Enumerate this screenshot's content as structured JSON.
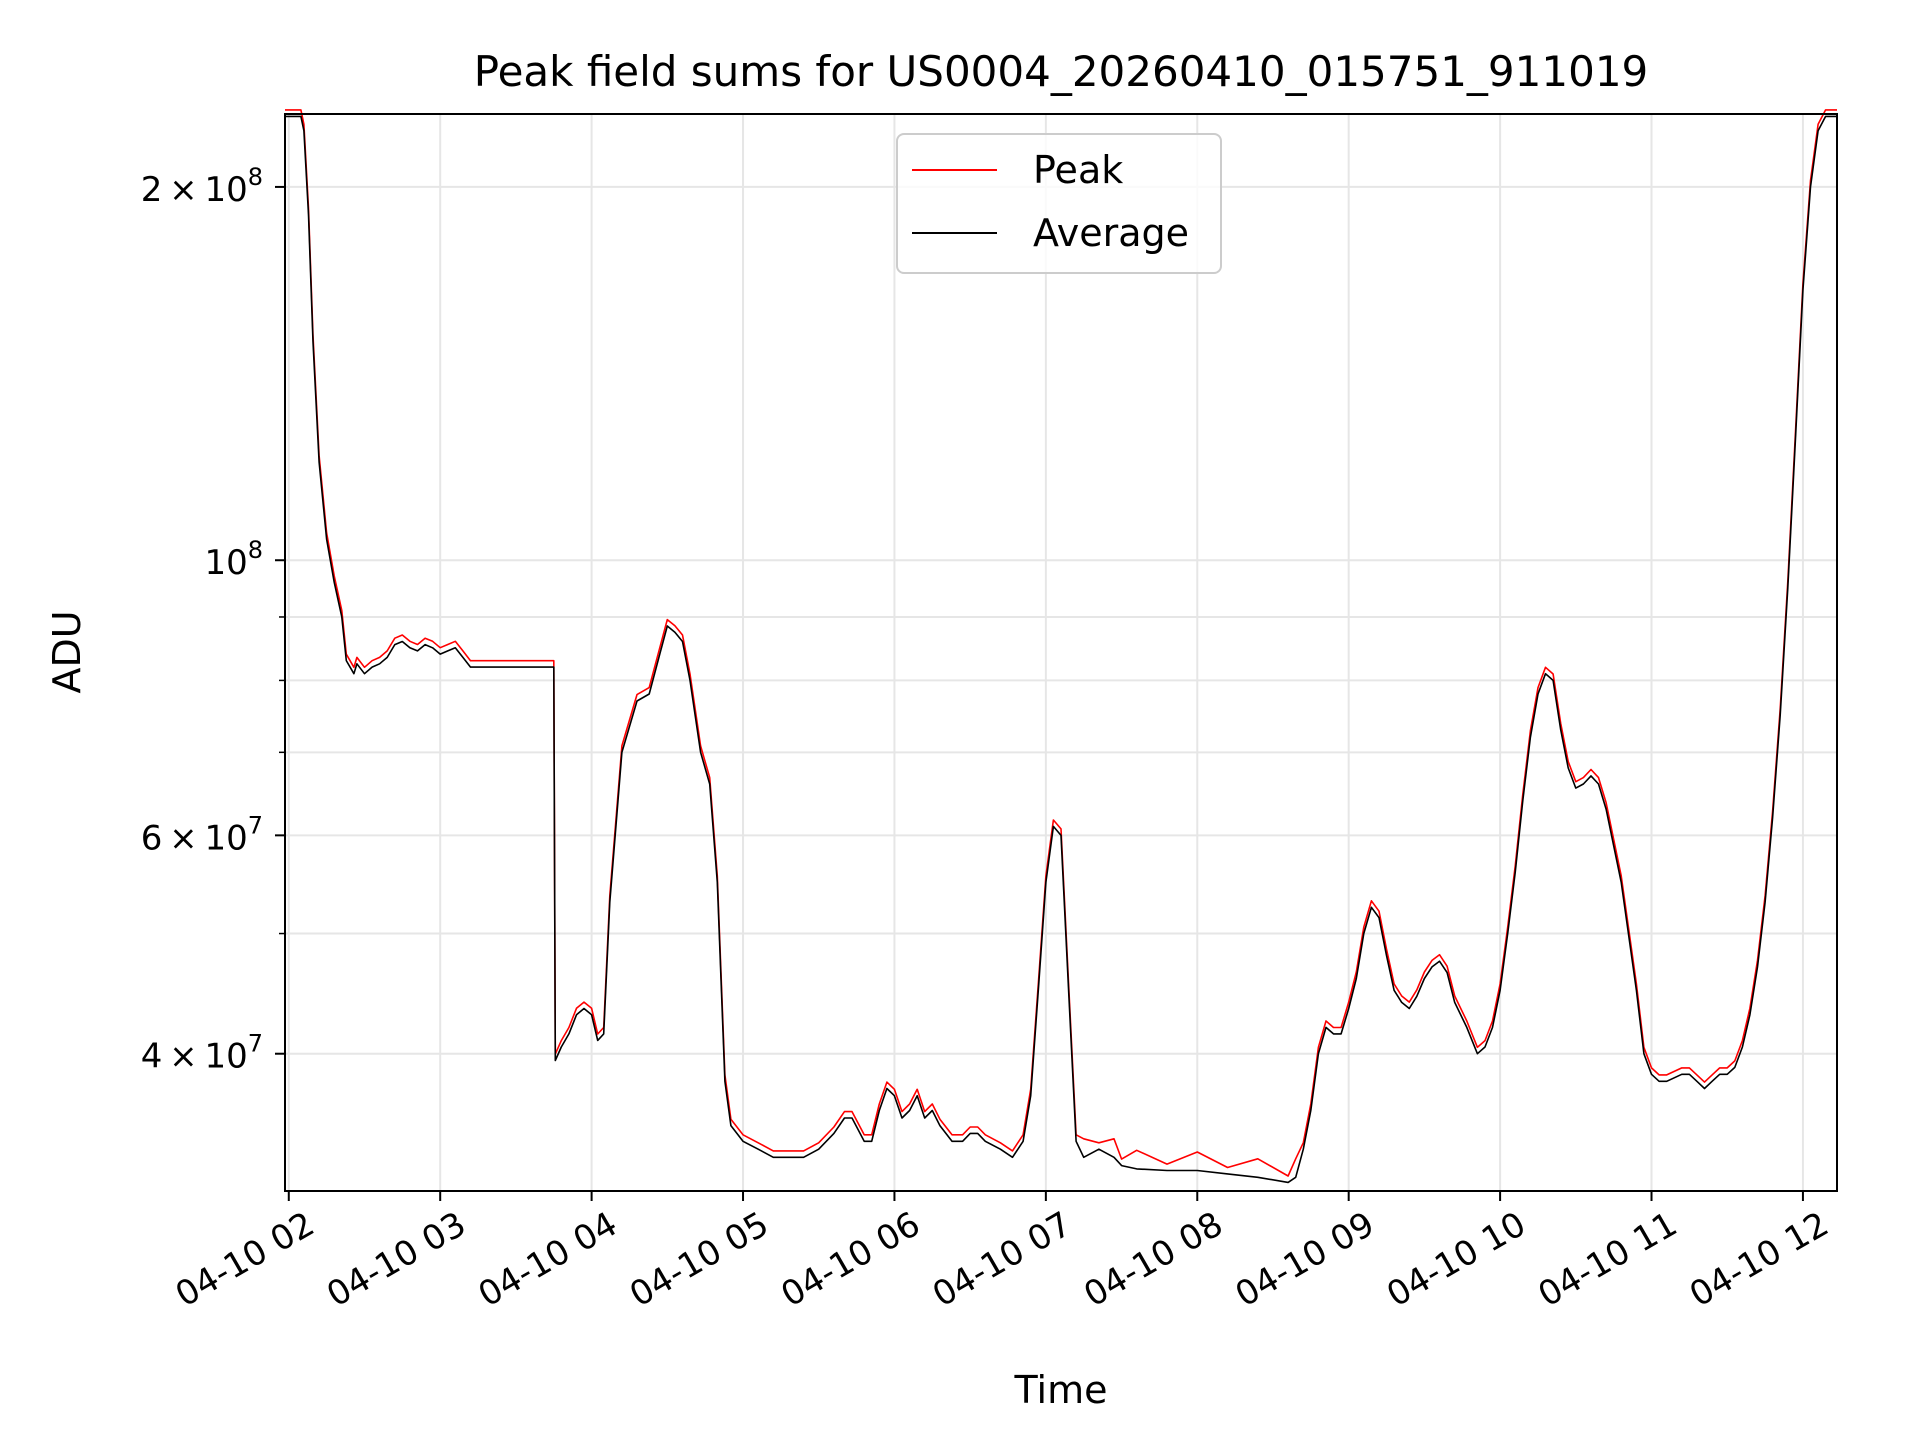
{
  "chart_data": {
    "type": "line",
    "title": "Peak field sums for US0004_20260410_015751_911019",
    "xlabel": "Time",
    "ylabel": "ADU",
    "y_scale": "log",
    "ylim": [
      31000000,
      229000000
    ],
    "xlim": [
      1.975,
      12.225
    ],
    "grid": true,
    "legend_placement": "upper-center",
    "x_ticks": [
      {
        "v": 2,
        "label": "04-10 02"
      },
      {
        "v": 3,
        "label": "04-10 03"
      },
      {
        "v": 4,
        "label": "04-10 04"
      },
      {
        "v": 5,
        "label": "04-10 05"
      },
      {
        "v": 6,
        "label": "04-10 06"
      },
      {
        "v": 7,
        "label": "04-10 07"
      },
      {
        "v": 8,
        "label": "04-10 08"
      },
      {
        "v": 9,
        "label": "04-10 09"
      },
      {
        "v": 10,
        "label": "04-10 10"
      },
      {
        "v": 11,
        "label": "04-10 11"
      },
      {
        "v": 12,
        "label": "04-10 12"
      }
    ],
    "y_major_ticks": [
      {
        "v": 40000000,
        "mant": "4",
        "times": "×",
        "base": "10",
        "exp": "7"
      },
      {
        "v": 60000000,
        "mant": "6",
        "times": "×",
        "base": "10",
        "exp": "7"
      },
      {
        "v": 100000000,
        "mant": "",
        "times": "",
        "base": "10",
        "exp": "8"
      },
      {
        "v": 200000000,
        "mant": "2",
        "times": "×",
        "base": "10",
        "exp": "8"
      }
    ],
    "y_minor_ticks": [
      50000000,
      70000000,
      80000000,
      90000000
    ],
    "series": [
      {
        "name": "Average",
        "color": "#000000",
        "points": [
          [
            1.975,
            228
          ],
          [
            2.08,
            228
          ],
          [
            2.1,
            222
          ],
          [
            2.13,
            190
          ],
          [
            2.16,
            150
          ],
          [
            2.2,
            120
          ],
          [
            2.25,
            104
          ],
          [
            2.3,
            96
          ],
          [
            2.35,
            90
          ],
          [
            2.38,
            83
          ],
          [
            2.43,
            81
          ],
          [
            2.45,
            82.5
          ],
          [
            2.5,
            81
          ],
          [
            2.55,
            82
          ],
          [
            2.6,
            82.5
          ],
          [
            2.65,
            83.5
          ],
          [
            2.7,
            85.5
          ],
          [
            2.75,
            86
          ],
          [
            2.8,
            85
          ],
          [
            2.85,
            84.5
          ],
          [
            2.9,
            85.5
          ],
          [
            2.95,
            85
          ],
          [
            3.0,
            84
          ],
          [
            3.05,
            84.5
          ],
          [
            3.1,
            85
          ],
          [
            3.15,
            83.5
          ],
          [
            3.2,
            82
          ],
          [
            3.3,
            82
          ],
          [
            3.4,
            82
          ],
          [
            3.5,
            82
          ],
          [
            3.6,
            82
          ],
          [
            3.7,
            82
          ],
          [
            3.75,
            82
          ],
          [
            3.76,
            39.5
          ],
          [
            3.8,
            40.5
          ],
          [
            3.85,
            41.5
          ],
          [
            3.9,
            43
          ],
          [
            3.95,
            43.5
          ],
          [
            4.0,
            43
          ],
          [
            4.04,
            41
          ],
          [
            4.08,
            41.5
          ],
          [
            4.12,
            53
          ],
          [
            4.2,
            70
          ],
          [
            4.3,
            77
          ],
          [
            4.38,
            78
          ],
          [
            4.45,
            84
          ],
          [
            4.5,
            88.5
          ],
          [
            4.55,
            87.5
          ],
          [
            4.6,
            86
          ],
          [
            4.65,
            80
          ],
          [
            4.72,
            70
          ],
          [
            4.78,
            66
          ],
          [
            4.83,
            55
          ],
          [
            4.88,
            38
          ],
          [
            4.92,
            35
          ],
          [
            5.0,
            34
          ],
          [
            5.1,
            33.5
          ],
          [
            5.2,
            33
          ],
          [
            5.3,
            33
          ],
          [
            5.4,
            33
          ],
          [
            5.5,
            33.5
          ],
          [
            5.6,
            34.5
          ],
          [
            5.67,
            35.5
          ],
          [
            5.72,
            35.5
          ],
          [
            5.8,
            34
          ],
          [
            5.85,
            34
          ],
          [
            5.9,
            36
          ],
          [
            5.95,
            37.5
          ],
          [
            6.0,
            37
          ],
          [
            6.05,
            35.5
          ],
          [
            6.1,
            36
          ],
          [
            6.15,
            37
          ],
          [
            6.2,
            35.5
          ],
          [
            6.25,
            36
          ],
          [
            6.3,
            35
          ],
          [
            6.38,
            34
          ],
          [
            6.45,
            34
          ],
          [
            6.5,
            34.5
          ],
          [
            6.55,
            34.5
          ],
          [
            6.6,
            34
          ],
          [
            6.7,
            33.5
          ],
          [
            6.78,
            33
          ],
          [
            6.85,
            34
          ],
          [
            6.9,
            37
          ],
          [
            6.95,
            45
          ],
          [
            7.0,
            55
          ],
          [
            7.05,
            61
          ],
          [
            7.1,
            60
          ],
          [
            7.15,
            45
          ],
          [
            7.2,
            34
          ],
          [
            7.25,
            33
          ],
          [
            7.35,
            33.5
          ],
          [
            7.45,
            33
          ],
          [
            7.5,
            32.5
          ],
          [
            7.6,
            32.3
          ],
          [
            7.8,
            32.2
          ],
          [
            8.0,
            32.2
          ],
          [
            8.2,
            32
          ],
          [
            8.4,
            31.8
          ],
          [
            8.6,
            31.5
          ],
          [
            8.65,
            31.8
          ],
          [
            8.7,
            33.5
          ],
          [
            8.75,
            36
          ],
          [
            8.8,
            40
          ],
          [
            8.85,
            42
          ],
          [
            8.9,
            41.5
          ],
          [
            8.95,
            41.5
          ],
          [
            9.0,
            43.5
          ],
          [
            9.05,
            46
          ],
          [
            9.1,
            50
          ],
          [
            9.15,
            52.5
          ],
          [
            9.2,
            51.5
          ],
          [
            9.25,
            48
          ],
          [
            9.3,
            45
          ],
          [
            9.35,
            44
          ],
          [
            9.4,
            43.5
          ],
          [
            9.45,
            44.5
          ],
          [
            9.5,
            46
          ],
          [
            9.55,
            47
          ],
          [
            9.6,
            47.5
          ],
          [
            9.65,
            46.5
          ],
          [
            9.7,
            44
          ],
          [
            9.78,
            42
          ],
          [
            9.85,
            40
          ],
          [
            9.9,
            40.5
          ],
          [
            9.95,
            42
          ],
          [
            10.0,
            45
          ],
          [
            10.05,
            50
          ],
          [
            10.1,
            56
          ],
          [
            10.15,
            64
          ],
          [
            10.2,
            72
          ],
          [
            10.25,
            78
          ],
          [
            10.3,
            81
          ],
          [
            10.35,
            80
          ],
          [
            10.4,
            73
          ],
          [
            10.45,
            68
          ],
          [
            10.5,
            65.5
          ],
          [
            10.55,
            66
          ],
          [
            10.6,
            67
          ],
          [
            10.65,
            66
          ],
          [
            10.7,
            63
          ],
          [
            10.8,
            55
          ],
          [
            10.9,
            45
          ],
          [
            10.95,
            40
          ],
          [
            11.0,
            38.5
          ],
          [
            11.05,
            38
          ],
          [
            11.1,
            38
          ],
          [
            11.2,
            38.5
          ],
          [
            11.25,
            38.5
          ],
          [
            11.3,
            38
          ],
          [
            11.35,
            37.5
          ],
          [
            11.4,
            38
          ],
          [
            11.45,
            38.5
          ],
          [
            11.5,
            38.5
          ],
          [
            11.55,
            39
          ],
          [
            11.6,
            40.5
          ],
          [
            11.65,
            43
          ],
          [
            11.7,
            47
          ],
          [
            11.75,
            53
          ],
          [
            11.8,
            62
          ],
          [
            11.85,
            75
          ],
          [
            11.9,
            95
          ],
          [
            11.95,
            125
          ],
          [
            12.0,
            165
          ],
          [
            12.05,
            200
          ],
          [
            12.1,
            222
          ],
          [
            12.15,
            228
          ],
          [
            12.225,
            228
          ]
        ]
      }
    ],
    "legend": [
      {
        "label": "Peak",
        "color": "#ff0000"
      },
      {
        "label": "Average",
        "color": "#000000"
      }
    ]
  }
}
